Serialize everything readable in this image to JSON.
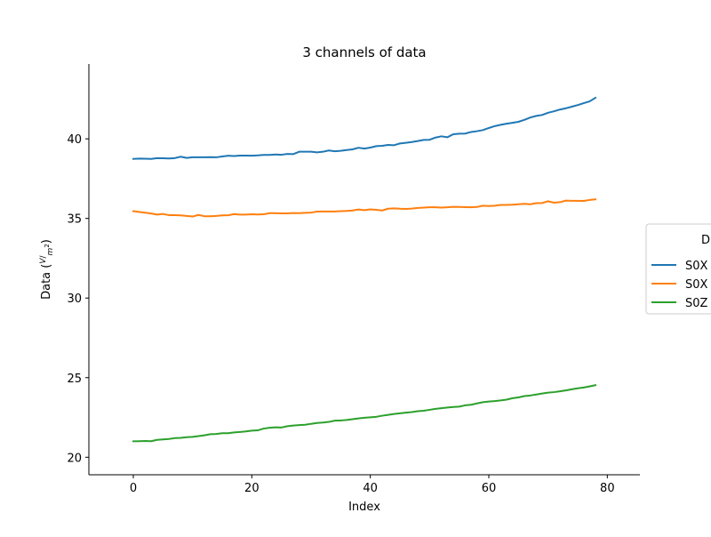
{
  "chart_data": {
    "type": "line",
    "title": "3 channels of data",
    "xlabel": "Index",
    "ylabel_prefix": "Data (",
    "ylabel_unit_num": "V",
    "ylabel_unit_den": "m",
    "ylabel_unit_den_exp": "2",
    "ylabel_suffix": ")",
    "xlim": [
      -7.5,
      85.5
    ],
    "ylim": [
      18.9,
      44.7
    ],
    "x_ticks": [
      0,
      20,
      40,
      60,
      80
    ],
    "x_tick_labels": [
      "0",
      "20",
      "40",
      "60",
      "80"
    ],
    "y_ticks": [
      20,
      25,
      30,
      35,
      40
    ],
    "y_tick_labels": [
      "20",
      "25",
      "30",
      "35",
      "40"
    ],
    "grid": false,
    "legend": {
      "title": "D",
      "placement": "right, partially clipped"
    },
    "x_start": 0,
    "x_step": 1,
    "series": [
      {
        "name": "S0X",
        "color": "#1f77b4",
        "values": [
          38.74,
          38.76,
          38.75,
          38.74,
          38.79,
          38.78,
          38.77,
          38.79,
          38.88,
          38.8,
          38.84,
          38.84,
          38.84,
          38.85,
          38.84,
          38.89,
          38.94,
          38.92,
          38.95,
          38.95,
          38.94,
          38.96,
          38.99,
          38.99,
          39.02,
          39,
          39.05,
          39.04,
          39.19,
          39.19,
          39.19,
          39.15,
          39.19,
          39.27,
          39.22,
          39.25,
          39.3,
          39.34,
          39.44,
          39.39,
          39.45,
          39.54,
          39.56,
          39.62,
          39.6,
          39.71,
          39.75,
          39.8,
          39.86,
          39.93,
          39.94,
          40.08,
          40.16,
          40.1,
          40.29,
          40.32,
          40.33,
          40.43,
          40.48,
          40.55,
          40.68,
          40.8,
          40.88,
          40.95,
          41.01,
          41.07,
          41.19,
          41.34,
          41.44,
          41.5,
          41.64,
          41.73,
          41.84,
          41.92,
          42.02,
          42.12,
          42.24,
          42.35,
          42.58
        ]
      },
      {
        "name": "S0X",
        "color": "#ff7f0e",
        "values": [
          35.46,
          35.41,
          35.36,
          35.31,
          35.24,
          35.28,
          35.21,
          35.21,
          35.19,
          35.16,
          35.12,
          35.22,
          35.14,
          35.14,
          35.16,
          35.19,
          35.2,
          35.27,
          35.24,
          35.24,
          35.26,
          35.25,
          35.26,
          35.33,
          35.33,
          35.32,
          35.32,
          35.34,
          35.33,
          35.35,
          35.37,
          35.43,
          35.44,
          35.44,
          35.44,
          35.46,
          35.47,
          35.5,
          35.56,
          35.52,
          35.57,
          35.54,
          35.5,
          35.61,
          35.63,
          35.61,
          35.6,
          35.62,
          35.66,
          35.68,
          35.7,
          35.7,
          35.68,
          35.7,
          35.73,
          35.72,
          35.71,
          35.7,
          35.72,
          35.8,
          35.78,
          35.8,
          35.85,
          35.85,
          35.86,
          35.89,
          35.92,
          35.89,
          35.96,
          35.97,
          36.08,
          35.99,
          36.02,
          36.12,
          36.11,
          36.11,
          36.1,
          36.16,
          36.2
        ]
      },
      {
        "name": "S0Z",
        "color": "#2ca02c",
        "values": [
          21,
          21.01,
          21.02,
          21.01,
          21.09,
          21.12,
          21.15,
          21.2,
          21.22,
          21.26,
          21.28,
          21.33,
          21.38,
          21.45,
          21.46,
          21.51,
          21.51,
          21.56,
          21.59,
          21.62,
          21.67,
          21.69,
          21.8,
          21.85,
          21.88,
          21.87,
          21.95,
          21.99,
          22.02,
          22.04,
          22.1,
          22.15,
          22.18,
          22.22,
          22.3,
          22.31,
          22.34,
          22.39,
          22.44,
          22.48,
          22.51,
          22.54,
          22.61,
          22.66,
          22.72,
          22.76,
          22.8,
          22.84,
          22.89,
          22.92,
          22.98,
          23.04,
          23.08,
          23.12,
          23.16,
          23.18,
          23.26,
          23.3,
          23.38,
          23.46,
          23.5,
          23.53,
          23.57,
          23.62,
          23.71,
          23.76,
          23.84,
          23.88,
          23.94,
          24,
          24.06,
          24.09,
          24.14,
          24.2,
          24.27,
          24.33,
          24.38,
          24.45,
          24.53
        ]
      }
    ]
  }
}
